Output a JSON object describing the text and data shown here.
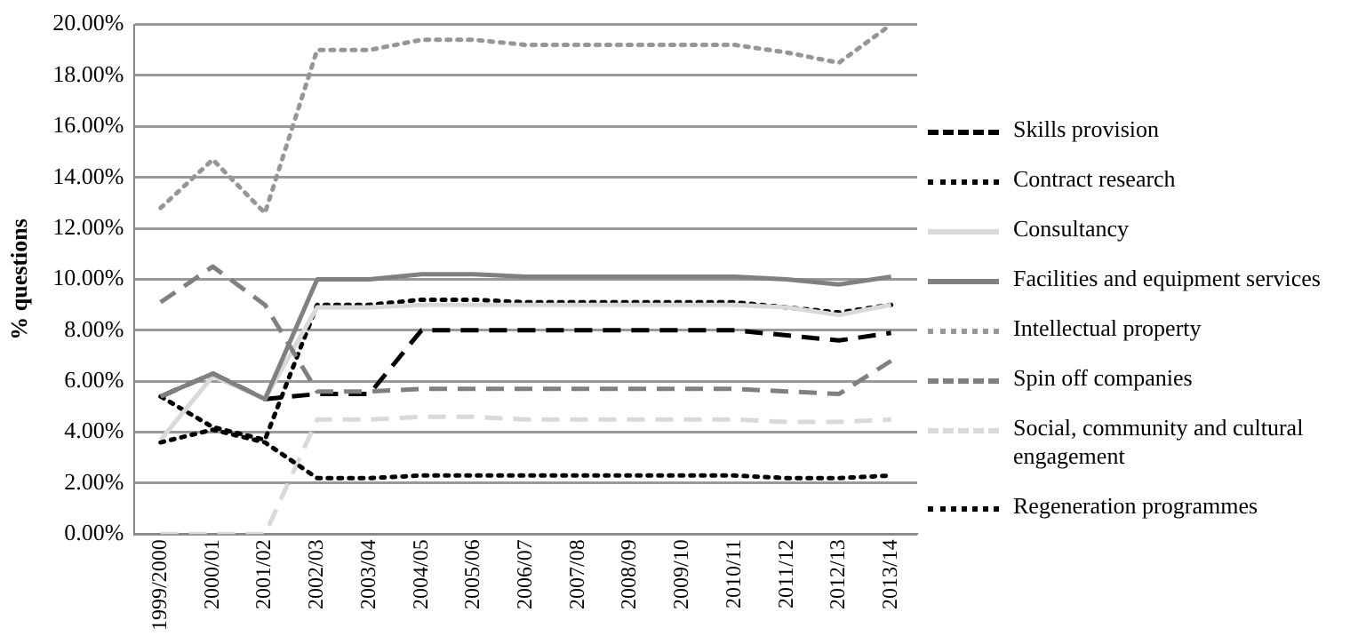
{
  "chart_data": {
    "type": "line",
    "ylabel": "% questions",
    "categories": [
      "1999/2000",
      "2000/01",
      "2001/02",
      "2002/03",
      "2003/04",
      "2004/05",
      "2005/06",
      "2006/07",
      "2007/08",
      "2008/09",
      "2009/10",
      "2010/11",
      "2011/12",
      "2012/13",
      "2013/14"
    ],
    "ylim": [
      0,
      20
    ],
    "yticks": [
      {
        "value": 0,
        "label": "0.00%"
      },
      {
        "value": 2,
        "label": "2.00%"
      },
      {
        "value": 4,
        "label": "4.00%"
      },
      {
        "value": 6,
        "label": "6.00%"
      },
      {
        "value": 8,
        "label": "8.00%"
      },
      {
        "value": 10,
        "label": "10.00%"
      },
      {
        "value": 12,
        "label": "12.00%"
      },
      {
        "value": 14,
        "label": "14.00%"
      },
      {
        "value": 16,
        "label": "16.00%"
      },
      {
        "value": 18,
        "label": "18.00%"
      },
      {
        "value": 20,
        "label": "20.00%"
      }
    ],
    "grid": "y",
    "legend": "right",
    "marker": "none",
    "series": [
      {
        "name": "Skills provision",
        "color": "#000000",
        "line_style": "dashed",
        "values": [
          5.4,
          6.3,
          5.3,
          5.5,
          5.5,
          8.0,
          8.0,
          8.0,
          8.0,
          8.0,
          8.0,
          8.0,
          7.8,
          7.6,
          7.9
        ]
      },
      {
        "name": "Contract research",
        "color": "#000000",
        "line_style": "dotted",
        "values": [
          5.4,
          4.2,
          3.7,
          9.0,
          9.0,
          9.2,
          9.2,
          9.1,
          9.1,
          9.1,
          9.1,
          9.1,
          8.9,
          8.7,
          9.0
        ]
      },
      {
        "name": "Consultancy",
        "color": "#d9d9d9",
        "line_style": "solid",
        "values": [
          3.7,
          6.2,
          5.3,
          8.9,
          8.9,
          9.0,
          9.0,
          9.0,
          9.0,
          9.0,
          9.0,
          9.0,
          8.9,
          8.6,
          9.0
        ]
      },
      {
        "name": "Facilities and equipment services",
        "color": "#808080",
        "line_style": "solid",
        "values": [
          5.4,
          6.3,
          5.3,
          10.0,
          10.0,
          10.2,
          10.2,
          10.1,
          10.1,
          10.1,
          10.1,
          10.1,
          10.0,
          9.8,
          10.1
        ]
      },
      {
        "name": "Intellectual property",
        "color": "#969696",
        "line_style": "dotted",
        "values": [
          12.8,
          14.7,
          12.6,
          19.0,
          19.0,
          19.4,
          19.4,
          19.2,
          19.2,
          19.2,
          19.2,
          19.2,
          18.9,
          18.5,
          20.0
        ]
      },
      {
        "name": "Spin off companies",
        "color": "#808080",
        "line_style": "dashed",
        "values": [
          9.1,
          10.5,
          9.0,
          5.6,
          5.6,
          5.7,
          5.7,
          5.7,
          5.7,
          5.7,
          5.7,
          5.7,
          5.6,
          5.5,
          6.8
        ]
      },
      {
        "name": "Social, community and cultural engagement",
        "color": "#d9d9d9",
        "line_style": "dashed",
        "values": [
          0,
          0,
          0,
          4.5,
          4.5,
          4.6,
          4.6,
          4.5,
          4.5,
          4.5,
          4.5,
          4.5,
          4.4,
          4.4,
          4.5
        ]
      },
      {
        "name": "Regeneration programmes",
        "color": "#000000",
        "line_style": "dotted",
        "values": [
          3.6,
          4.1,
          3.6,
          2.2,
          2.2,
          2.3,
          2.3,
          2.3,
          2.3,
          2.3,
          2.3,
          2.3,
          2.2,
          2.2,
          2.3
        ]
      }
    ]
  }
}
